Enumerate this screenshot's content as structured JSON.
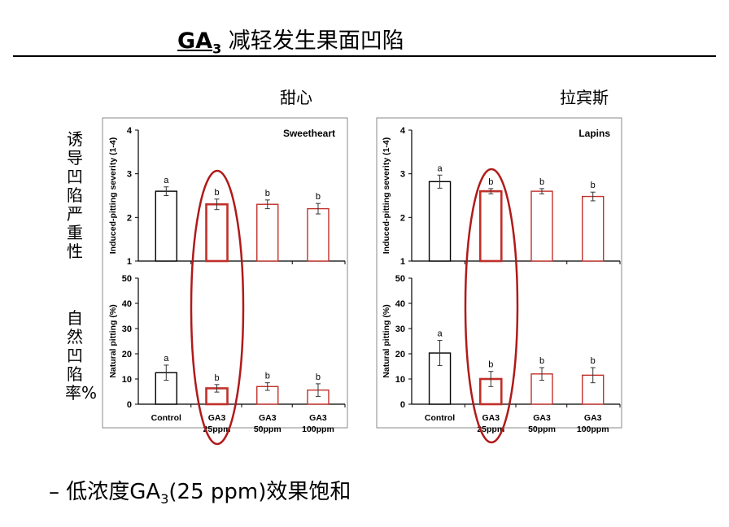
{
  "slide": {
    "title_chem": "GA",
    "title_sub": "3",
    "title_text": " 减轻发生果面凹陷",
    "col_left": "甜心",
    "col_right": "拉宾斯",
    "label_top": "诱导凹陷严重性",
    "label_bottom": "自然凹陷率%",
    "bullet_dash": "–",
    "bullet_pre": "低浓度GA",
    "bullet_sub": "3",
    "bullet_post": "(25 ppm)效果饱和"
  },
  "colors": {
    "control": "#000000",
    "ga3": "#c0302a",
    "highlight": "#b01a1a"
  },
  "chart_data": [
    {
      "type": "bar",
      "panel": "Sweetheart-severity",
      "legend_text": "Sweetheart",
      "ylabel": "Induced-pitting severity (1-4)",
      "ylim": [
        1,
        4
      ],
      "yticks": [
        "1",
        "2",
        "3",
        "4"
      ],
      "categories": [
        "Control",
        "GA3 25ppm",
        "GA3 50ppm",
        "GA3 100ppm"
      ],
      "values": [
        2.6,
        2.3,
        2.3,
        2.2
      ],
      "errors": [
        0.1,
        0.12,
        0.1,
        0.12
      ],
      "letters": [
        "a",
        "b",
        "b",
        "b"
      ]
    },
    {
      "type": "bar",
      "panel": "Sweetheart-natural",
      "ylabel": "Natural pitting (%)",
      "ylim": [
        0,
        50
      ],
      "yticks": [
        "0",
        "10",
        "20",
        "30",
        "40",
        "50"
      ],
      "categories": [
        "Control",
        "GA3 25ppm",
        "GA3 50ppm",
        "GA3 100ppm"
      ],
      "xlabels": [
        [
          "Control",
          ""
        ],
        [
          "GA3",
          "25ppm"
        ],
        [
          "GA3",
          "50ppm"
        ],
        [
          "GA3",
          "100ppm"
        ]
      ],
      "values": [
        12.5,
        6.3,
        7.0,
        5.6
      ],
      "errors": [
        3.0,
        1.5,
        1.5,
        2.5
      ],
      "letters": [
        "a",
        "b",
        "b",
        "b"
      ]
    },
    {
      "type": "bar",
      "panel": "Lapins-severity",
      "legend_text": "Lapins",
      "ylabel": "Induced-pitting severity (1-4)",
      "ylim": [
        1,
        4
      ],
      "yticks": [
        "1",
        "2",
        "3",
        "4"
      ],
      "categories": [
        "Control",
        "GA3 25ppm",
        "GA3 50ppm",
        "GA3 100ppm"
      ],
      "values": [
        2.82,
        2.6,
        2.6,
        2.48
      ],
      "errors": [
        0.15,
        0.06,
        0.06,
        0.1
      ],
      "letters": [
        "a",
        "b",
        "b",
        "b"
      ]
    },
    {
      "type": "bar",
      "panel": "Lapins-natural",
      "ylabel": "Natural pitting (%)",
      "ylim": [
        0,
        50
      ],
      "yticks": [
        "0",
        "10",
        "20",
        "30",
        "40",
        "50"
      ],
      "categories": [
        "Control",
        "GA3 25ppm",
        "GA3 50ppm",
        "GA3 100ppm"
      ],
      "xlabels": [
        [
          "Control",
          ""
        ],
        [
          "GA3",
          "25ppm"
        ],
        [
          "GA3",
          "50ppm"
        ],
        [
          "GA3",
          "100ppm"
        ]
      ],
      "values": [
        20.3,
        10.0,
        12.0,
        11.5
      ],
      "errors": [
        5.0,
        3.0,
        2.5,
        3.0
      ],
      "letters": [
        "a",
        "b",
        "b",
        "b"
      ]
    }
  ]
}
